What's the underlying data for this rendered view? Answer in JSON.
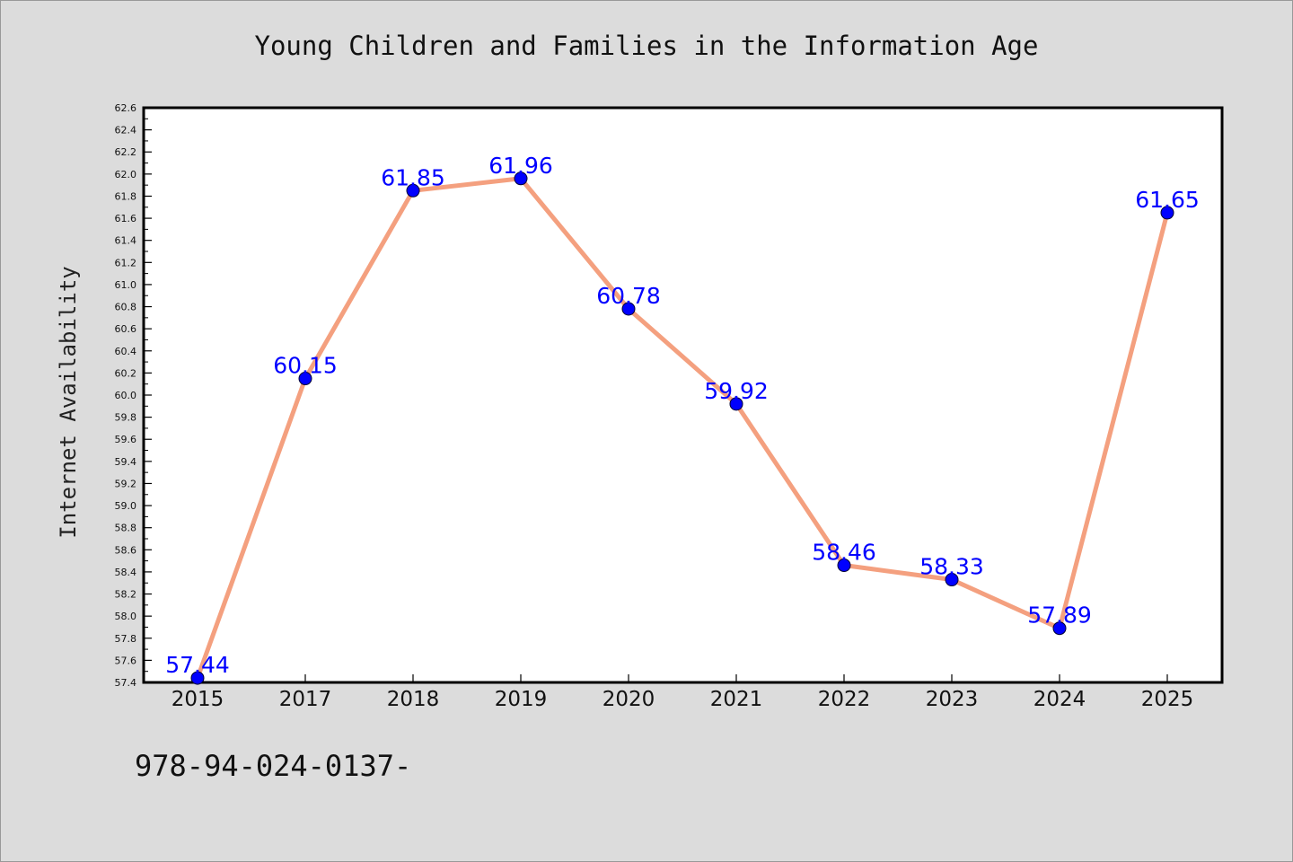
{
  "chart_data": {
    "type": "line",
    "title": "Young Children and Families in the Information Age",
    "xlabel": "",
    "ylabel": "Internet Availability",
    "x": [
      "2015",
      "2017",
      "2018",
      "2019",
      "2020",
      "2021",
      "2022",
      "2023",
      "2024",
      "2025"
    ],
    "series": [
      {
        "values": [
          57.44,
          60.15,
          61.85,
          61.96,
          60.78,
          59.92,
          58.46,
          58.33,
          57.89,
          61.65
        ]
      }
    ],
    "data_labels": [
      "57.44",
      "60.15",
      "61.85",
      "61.96",
      "60.78",
      "59.92",
      "58.46",
      "58.33",
      "57.89",
      "61.65"
    ],
    "ylim": [
      57.4,
      62.6
    ],
    "y_major_step": 0.2,
    "y_tick_labels": [
      "57.4",
      "57.6",
      "57.8",
      "58.0",
      "58.2",
      "58.4",
      "58.6",
      "58.8",
      "59.0",
      "59.2",
      "59.4",
      "59.6",
      "59.8",
      "60.0",
      "60.2",
      "60.4",
      "60.6",
      "60.8",
      "61.0",
      "61.2",
      "61.4",
      "61.6",
      "61.8",
      "62.0",
      "62.2",
      "62.4",
      "62.6"
    ],
    "grid": false,
    "legend": "none",
    "colors": {
      "line": "#f4a07f",
      "marker": "#0000ff",
      "label": "#0000ff",
      "background": "#dcdcdc",
      "plot_area": "#ffffff"
    }
  },
  "footer_text": "978-94-024-0137-"
}
